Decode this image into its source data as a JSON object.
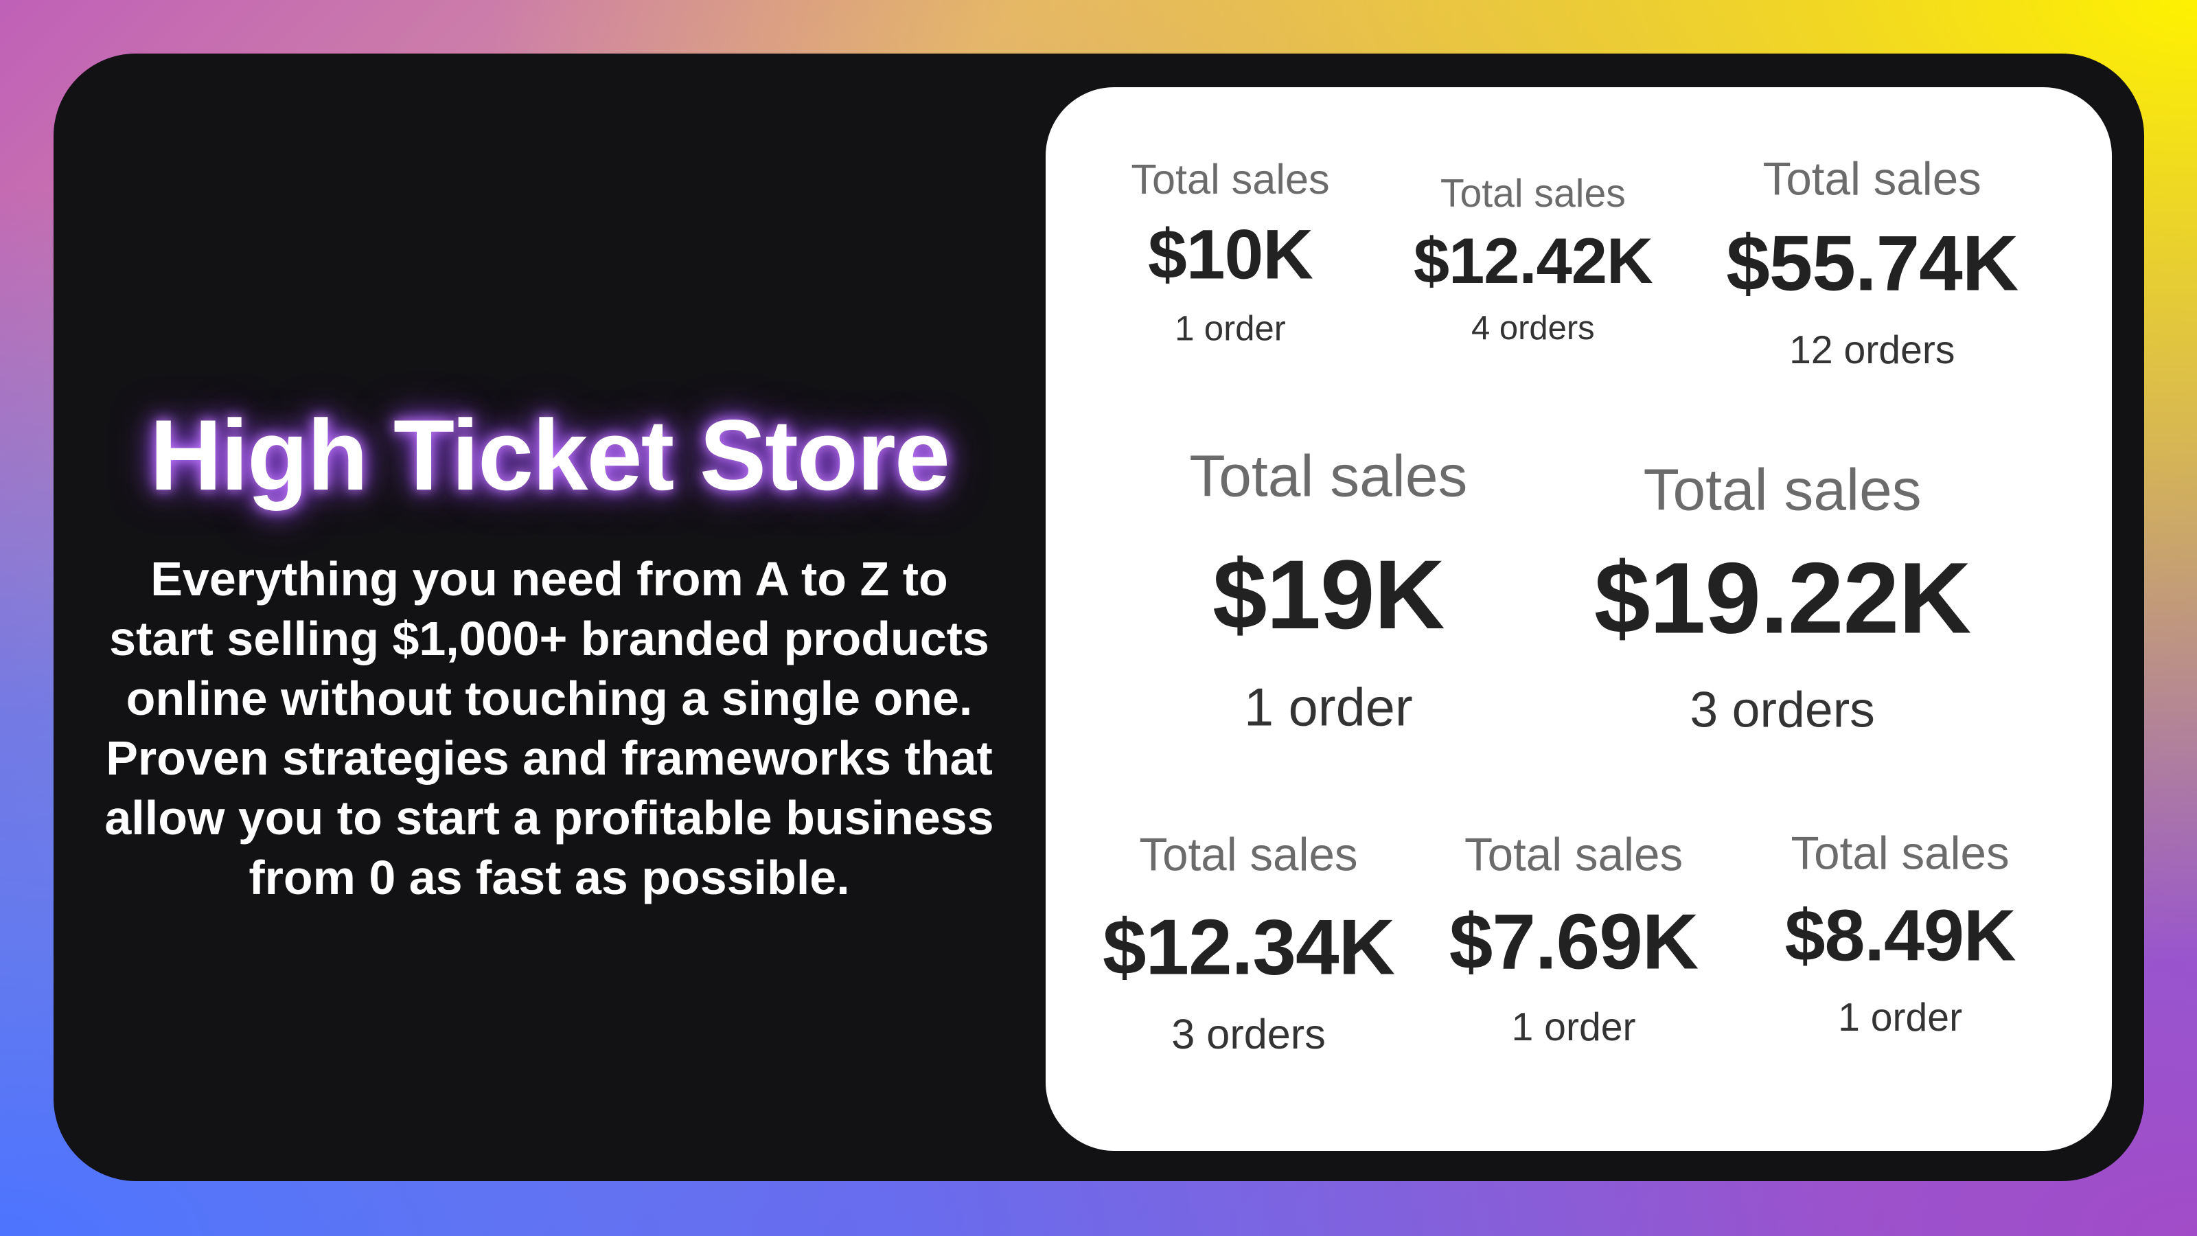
{
  "title": "High Ticket Store",
  "description": "Everything you need from A to Z to start selling $1,000+ branded products online without touching a single one. Proven strategies and frameworks that allow you to start a profitable business from 0 as fast as possible.",
  "stats": [
    {
      "label": "Total sales",
      "value": "$10K",
      "orders": "1 order"
    },
    {
      "label": "Total sales",
      "value": "$12.42K",
      "orders": "4 orders"
    },
    {
      "label": "Total sales",
      "value": "$55.74K",
      "orders": "12 orders"
    },
    {
      "label": "Total sales",
      "value": "$19K",
      "orders": "1 order"
    },
    {
      "label": "Total sales",
      "value": "$19.22K",
      "orders": "3 orders"
    },
    {
      "label": "Total sales",
      "value": "$12.34K",
      "orders": "3 orders"
    },
    {
      "label": "Total sales",
      "value": "$7.69K",
      "orders": "1 order"
    },
    {
      "label": "Total sales",
      "value": "$8.49K",
      "orders": "1 order"
    }
  ]
}
